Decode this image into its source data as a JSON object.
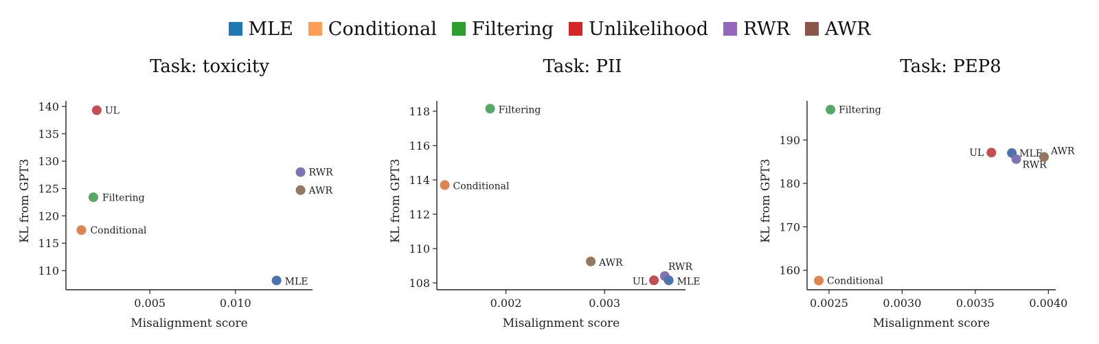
{
  "legend": {
    "items": [
      {
        "name": "MLE",
        "color": "#1f77b4"
      },
      {
        "name": "Conditional",
        "color": "#ff9f55"
      },
      {
        "name": "Filtering",
        "color": "#2ca02c"
      },
      {
        "name": "Unlikelihood",
        "color": "#d62728"
      },
      {
        "name": "RWR",
        "color": "#9467bd"
      },
      {
        "name": "AWR",
        "color": "#8c564b"
      }
    ]
  },
  "chart_data": [
    {
      "type": "scatter",
      "title": "Task: toxicity",
      "xlabel": "Misalignment score",
      "ylabel": "KL from GPT3",
      "xlim": [
        0.0001,
        0.0145
      ],
      "ylim": [
        106.5,
        141
      ],
      "xticks": [
        0.005,
        0.01
      ],
      "xtick_labels": [
        "0.005",
        "0.010"
      ],
      "yticks": [
        110,
        115,
        120,
        125,
        130,
        135,
        140
      ],
      "yticks_labels": [
        "110",
        "115",
        "120",
        "125",
        "130",
        "135",
        "140"
      ],
      "grid": false,
      "points": [
        {
          "label": "UL",
          "x": 0.0019,
          "y": 139.3,
          "color": "#c44e52"
        },
        {
          "label": "RWR",
          "x": 0.0138,
          "y": 128.0,
          "color": "#8172b2"
        },
        {
          "label": "AWR",
          "x": 0.0138,
          "y": 124.7,
          "color": "#937860"
        },
        {
          "label": "Filtering",
          "x": 0.0017,
          "y": 123.4,
          "color": "#55a868"
        },
        {
          "label": "Conditional",
          "x": 0.001,
          "y": 117.4,
          "color": "#dd8452"
        },
        {
          "label": "MLE",
          "x": 0.0124,
          "y": 108.2,
          "color": "#4c72b0"
        }
      ]
    },
    {
      "type": "scatter",
      "title": "Task: PII",
      "xlabel": "Misalignment score",
      "ylabel": "KL from GPT3",
      "xlim": [
        0.0013,
        0.00382
      ],
      "ylim": [
        107.6,
        118.6
      ],
      "xticks": [
        0.002,
        0.003
      ],
      "xtick_labels": [
        "0.002",
        "0.003"
      ],
      "yticks": [
        108,
        110,
        112,
        114,
        116,
        118
      ],
      "yticks_labels": [
        "108",
        "110",
        "112",
        "114",
        "116",
        "118"
      ],
      "grid": false,
      "points": [
        {
          "label": "Filtering",
          "x": 0.00184,
          "y": 118.15,
          "color": "#55a868"
        },
        {
          "label": "Conditional",
          "x": 0.00138,
          "y": 113.7,
          "color": "#dd8452"
        },
        {
          "label": "AWR",
          "x": 0.00286,
          "y": 109.25,
          "color": "#937860"
        },
        {
          "label": "RWR",
          "x": 0.00361,
          "y": 108.4,
          "color": "#8172b2"
        },
        {
          "label": "UL",
          "x": 0.0035,
          "y": 108.15,
          "color": "#c44e52"
        },
        {
          "label": "MLE",
          "x": 0.00365,
          "y": 108.15,
          "color": "#4c72b0"
        }
      ]
    },
    {
      "type": "scatter",
      "title": "Task: PEP8",
      "xlabel": "Misalignment score",
      "ylabel": "KL from GPT3",
      "xlim": [
        0.00235,
        0.00405
      ],
      "ylim": [
        155.5,
        199
      ],
      "xticks": [
        0.0025,
        0.003,
        0.0035,
        0.004
      ],
      "xtick_labels": [
        "0.0025",
        "0.0030",
        "0.0035",
        "0.0040"
      ],
      "yticks": [
        160,
        170,
        180,
        190
      ],
      "yticks_labels": [
        "160",
        "170",
        "180",
        "190"
      ],
      "grid": false,
      "points": [
        {
          "label": "Filtering",
          "x": 0.00251,
          "y": 197.0,
          "color": "#55a868"
        },
        {
          "label": "UL",
          "x": 0.00361,
          "y": 187.1,
          "color": "#c44e52"
        },
        {
          "label": "MLE",
          "x": 0.00375,
          "y": 187.0,
          "color": "#4c72b0"
        },
        {
          "label": "RWR",
          "x": 0.00378,
          "y": 185.6,
          "color": "#8172b2"
        },
        {
          "label": "AWR",
          "x": 0.00397,
          "y": 186.1,
          "color": "#937860"
        },
        {
          "label": "Conditional",
          "x": 0.00243,
          "y": 157.6,
          "color": "#dd8452"
        }
      ]
    }
  ]
}
